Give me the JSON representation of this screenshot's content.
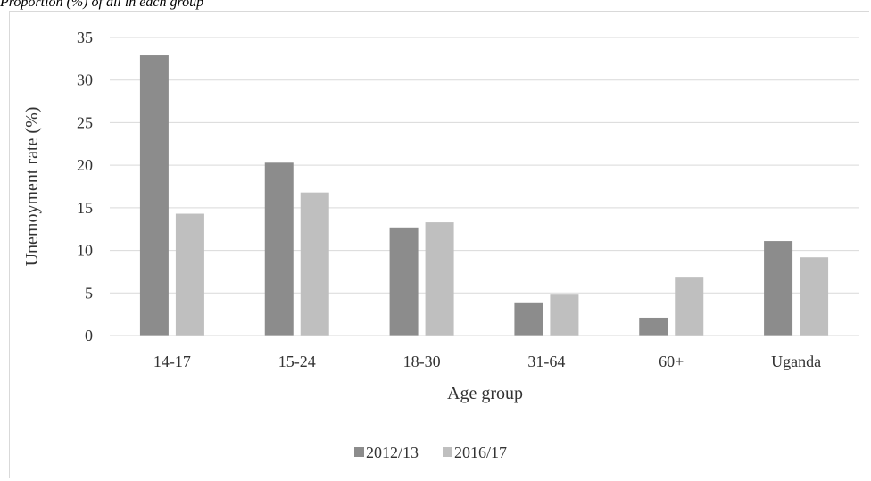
{
  "subtitle": "Proportion (%) of all in each group",
  "chart_data": {
    "type": "bar",
    "title": "",
    "categories": [
      "14-17",
      "15-24",
      "18-30",
      "31-64",
      "60+",
      "Uganda"
    ],
    "series": [
      {
        "name": "2012/13",
        "color": "#8c8c8c",
        "values": [
          32.9,
          20.3,
          12.7,
          3.9,
          2.1,
          11.1
        ]
      },
      {
        "name": "2016/17",
        "color": "#bfbfbf",
        "values": [
          14.3,
          16.8,
          13.3,
          4.8,
          6.9,
          9.2
        ]
      }
    ],
    "xlabel": "Age group",
    "ylabel": "Unemoyment rate (%)",
    "ylim": [
      0,
      35
    ],
    "yticks": [
      0,
      5,
      10,
      15,
      20,
      25,
      30,
      35
    ],
    "grid": true,
    "legend": "bottom"
  }
}
